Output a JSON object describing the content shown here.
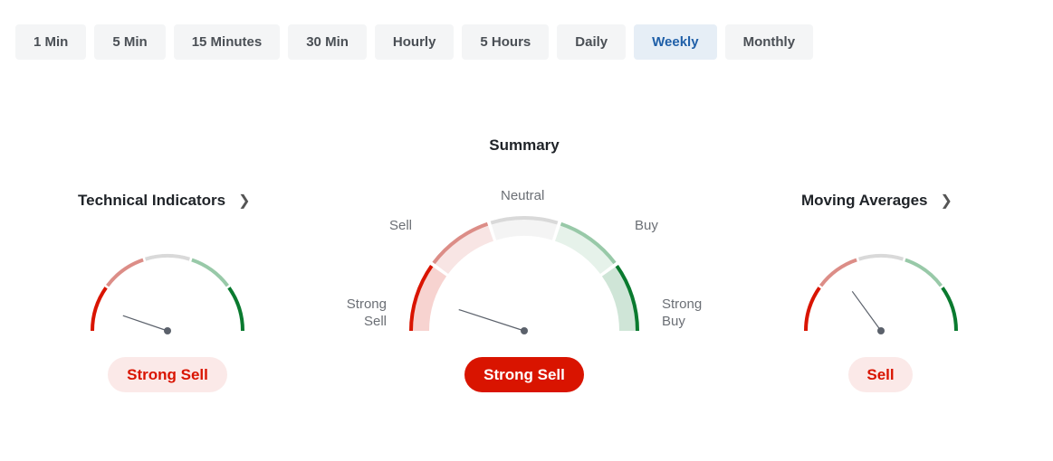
{
  "timeframes": {
    "items": [
      "1 Min",
      "5 Min",
      "15 Minutes",
      "30 Min",
      "Hourly",
      "5 Hours",
      "Daily",
      "Weekly",
      "Monthly"
    ],
    "active": "Weekly"
  },
  "summary": {
    "title": "Summary",
    "result": "Strong Sell",
    "needle_fraction": 0.1,
    "labels": {
      "strong_sell": "Strong\nSell",
      "sell": "Sell",
      "neutral": "Neutral",
      "buy": "Buy",
      "strong_buy": "Strong\nBuy"
    }
  },
  "technical_indicators": {
    "title": "Technical Indicators",
    "result": "Strong Sell",
    "needle_fraction": 0.105
  },
  "moving_averages": {
    "title": "Moving Averages",
    "result": "Sell",
    "needle_fraction": 0.3
  },
  "colors": {
    "strong_sell": "#d91400",
    "sell": "#dc8d87",
    "neutral": "#d9d9d9",
    "buy": "#98c9a8",
    "strong_buy": "#0a7a2f",
    "strong_sell_bg": "#f7d3d0",
    "sell_bg": "#f8e5e4",
    "neutral_bg": "#f4f4f4",
    "buy_bg": "#e6f2ea",
    "strong_buy_bg": "#cfe5d7",
    "needle": "#5b616b"
  }
}
